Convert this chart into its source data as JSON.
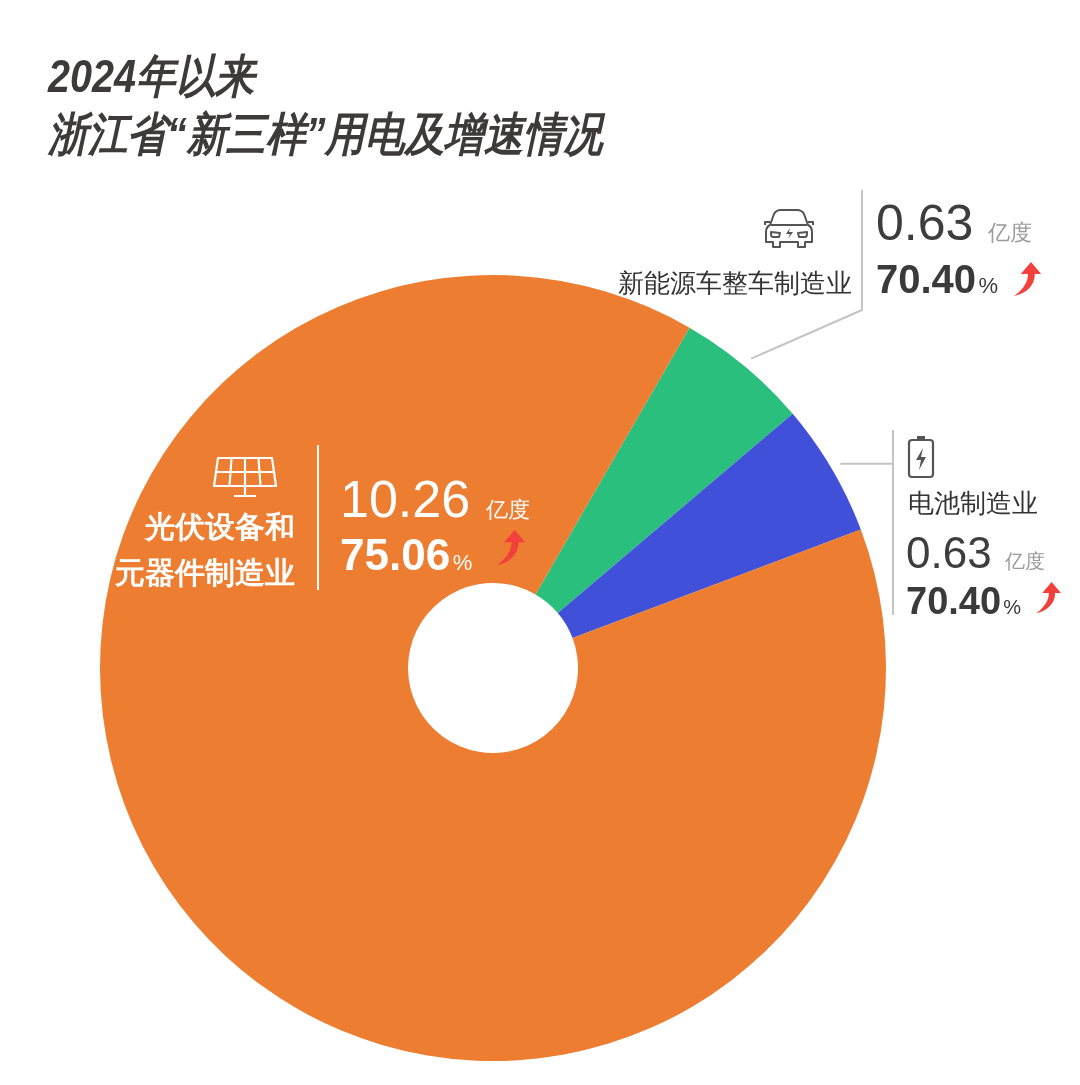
{
  "chart_data": {
    "type": "donut",
    "title": "2024年以来",
    "subtitle": "浙江省“新三样”用电及增速情况",
    "categories": [
      "新能源车整车制造业",
      "电池制造业",
      "光伏设备和元器件制造业"
    ],
    "values": [
      0.63,
      0.63,
      10.26
    ],
    "colors": [
      "#2bbf7e",
      "#4150d9",
      "#ed7d31"
    ],
    "value_labels": [
      "0.63 亿度",
      "0.63 亿度",
      "10.26 亿度"
    ],
    "annotations": [
      "70.40%",
      "70.40%",
      "75.06%"
    ]
  }
}
